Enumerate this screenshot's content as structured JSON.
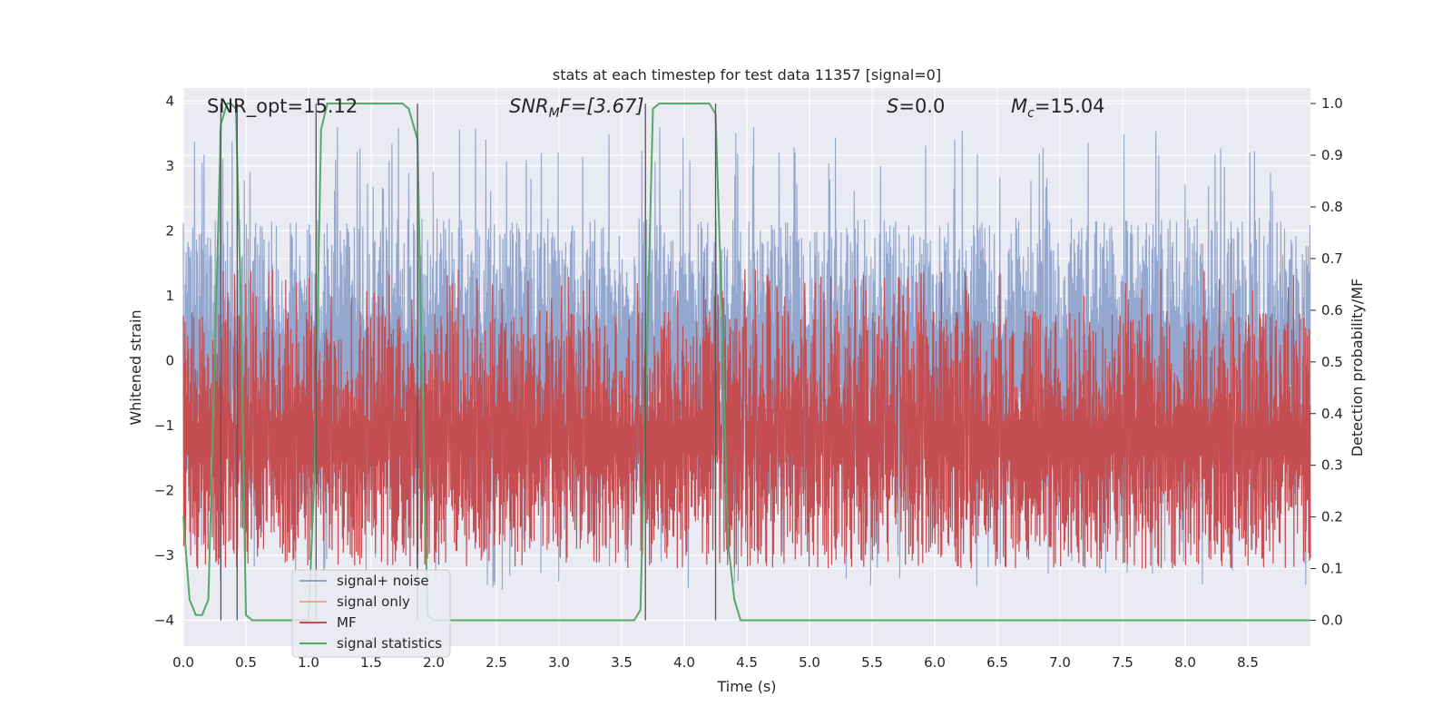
{
  "chart_data": {
    "type": "line",
    "title": "stats at each timestep for test data 11357 [signal=0]",
    "xlabel": "Time (s)",
    "ylabel_left": "Whitened strain",
    "ylabel_right": "Detection probability/MF",
    "xlim": [
      0.0,
      9.0
    ],
    "ylim_left": [
      -4.4,
      4.2
    ],
    "ylim_right": [
      -0.05,
      1.03
    ],
    "xticks": [
      "0.0",
      "0.5",
      "1.0",
      "1.5",
      "2.0",
      "2.5",
      "3.0",
      "3.5",
      "4.0",
      "4.5",
      "5.0",
      "5.5",
      "6.0",
      "6.5",
      "7.0",
      "7.5",
      "8.0",
      "8.5"
    ],
    "yticks_left": [
      "4",
      "3",
      "2",
      "1",
      "0",
      "−1",
      "−2",
      "−3",
      "−4"
    ],
    "yticks_right": [
      "1.0",
      "0.9",
      "0.8",
      "0.7",
      "0.6",
      "0.5",
      "0.4",
      "0.3",
      "0.2",
      "0.1",
      "0.0"
    ],
    "grid": true,
    "legend_position": "lower-left",
    "annotations": {
      "snr_opt": "SNR_opt=15.12",
      "snr_mf_sym": "SNR",
      "snr_mf_sub": "M",
      "snr_mf_rest": "F=[3.67]",
      "s_sym": "S",
      "s_rest": "=0.0",
      "mc_sym": "M",
      "mc_sub": "c",
      "mc_rest": "=15.04"
    },
    "series": [
      {
        "name": "signal+ noise",
        "color": "#8fa3cc",
        "range": [
          -3.8,
          3.7
        ],
        "typical_abs": 2.2
      },
      {
        "name": "signal only",
        "color": "#f0a987"
      },
      {
        "name": "MF",
        "color": "#c44e52",
        "range": [
          0.0,
          1.0
        ],
        "typical": [
          0.1,
          0.6
        ]
      },
      {
        "name": "signal statistics",
        "color": "#55a868",
        "x": [
          0.0,
          0.05,
          0.1,
          0.15,
          0.2,
          0.25,
          0.3,
          0.35,
          0.38,
          0.42,
          0.46,
          0.5,
          0.55,
          1.0,
          1.05,
          1.1,
          1.15,
          1.2,
          1.6,
          1.75,
          1.8,
          1.87,
          1.9,
          1.95,
          2.0,
          3.6,
          3.65,
          3.7,
          3.75,
          3.8,
          4.2,
          4.25,
          4.3,
          4.35,
          4.4,
          4.45,
          4.5,
          8.999
        ],
        "y": [
          0.2,
          0.04,
          0.01,
          0.01,
          0.04,
          0.5,
          0.96,
          1.0,
          1.0,
          0.99,
          0.6,
          0.01,
          0.0,
          0.0,
          0.3,
          0.95,
          1.0,
          1.0,
          1.0,
          1.0,
          0.99,
          0.93,
          0.55,
          0.01,
          0.0,
          0.0,
          0.02,
          0.5,
          0.99,
          1.0,
          1.0,
          0.98,
          0.6,
          0.15,
          0.04,
          0.0,
          0.0,
          0.0
        ]
      }
    ],
    "vlines_x": [
      0.3,
      0.43,
      1.06,
      1.87,
      3.69,
      4.25
    ]
  }
}
